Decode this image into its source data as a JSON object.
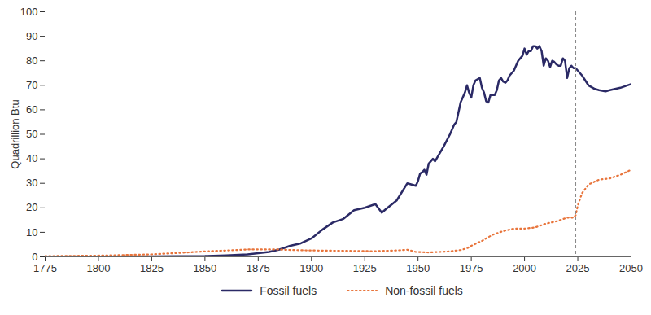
{
  "chart_data": {
    "type": "line",
    "y_label": "Quadrillion Btu",
    "xlim": [
      1775,
      2050
    ],
    "xticks": [
      1775,
      1800,
      1825,
      1850,
      1875,
      1900,
      1925,
      1950,
      1975,
      2000,
      2025,
      2050
    ],
    "ylim": [
      0,
      100
    ],
    "yticks": [
      0,
      10,
      20,
      30,
      40,
      50,
      60,
      70,
      80,
      90,
      100
    ],
    "grid": false,
    "legend": "bottom",
    "projection_start": 2024,
    "series": [
      {
        "name": "Fossil fuels",
        "color": "#2b2a66",
        "line_style": "solid",
        "x": [
          1775,
          1800,
          1825,
          1850,
          1860,
          1870,
          1880,
          1885,
          1890,
          1895,
          1900,
          1905,
          1910,
          1915,
          1920,
          1925,
          1930,
          1933,
          1935,
          1940,
          1945,
          1949,
          1950,
          1951,
          1952,
          1953,
          1954,
          1955,
          1957,
          1958,
          1960,
          1962,
          1965,
          1967,
          1968,
          1970,
          1972,
          1973,
          1974,
          1975,
          1976,
          1977,
          1978,
          1979,
          1980,
          1981,
          1982,
          1983,
          1984,
          1985,
          1986,
          1987,
          1988,
          1989,
          1990,
          1991,
          1992,
          1993,
          1994,
          1995,
          1996,
          1997,
          1998,
          1999,
          2000,
          2001,
          2002,
          2003,
          2004,
          2005,
          2006,
          2007,
          2008,
          2009,
          2010,
          2011,
          2012,
          2013,
          2014,
          2015,
          2016,
          2017,
          2018,
          2019,
          2020,
          2021,
          2022,
          2023,
          2024,
          2025,
          2027,
          2030,
          2033,
          2035,
          2038,
          2040,
          2045,
          2050
        ],
        "values": [
          0,
          0.1,
          0.2,
          0.3,
          0.6,
          1,
          2,
          3,
          4.5,
          5.5,
          7.5,
          11,
          14,
          15.5,
          19,
          20,
          21.5,
          18,
          19.5,
          23,
          30,
          29,
          31,
          34,
          34.5,
          35.5,
          33.5,
          38,
          40,
          39,
          42,
          45,
          50,
          54,
          55,
          63,
          67,
          70,
          67,
          65,
          70,
          72,
          72.5,
          73,
          69,
          67,
          63.5,
          63,
          66,
          66,
          66,
          68,
          72,
          73,
          71.5,
          71,
          72,
          74,
          75,
          76,
          78,
          80,
          81,
          82,
          85,
          82.5,
          84,
          84,
          86,
          86,
          85,
          86,
          84,
          78,
          81,
          80,
          77.5,
          80,
          79.5,
          78.5,
          78,
          78,
          81,
          80,
          73,
          77,
          78,
          77,
          77,
          76,
          74,
          70,
          68.5,
          68,
          67.5,
          68,
          69,
          70.5
        ]
      },
      {
        "name": "Non-fossil fuels",
        "color": "#e8743b",
        "line_style": "dotted",
        "x": [
          1775,
          1800,
          1825,
          1850,
          1860,
          1870,
          1880,
          1885,
          1890,
          1900,
          1910,
          1920,
          1930,
          1940,
          1945,
          1949,
          1950,
          1955,
          1960,
          1965,
          1970,
          1973,
          1975,
          1980,
          1985,
          1990,
          1995,
          2000,
          2005,
          2010,
          2015,
          2020,
          2023,
          2024,
          2025,
          2027,
          2030,
          2035,
          2040,
          2045,
          2050
        ],
        "values": [
          0.3,
          0.5,
          1,
          2.2,
          2.6,
          3,
          3,
          3,
          2.8,
          2.6,
          2.5,
          2.4,
          2.3,
          2.6,
          2.9,
          2,
          2,
          1.8,
          2,
          2.2,
          2.8,
          3.5,
          4.5,
          6.5,
          9,
          10.5,
          11.5,
          11.5,
          12,
          13.5,
          14.5,
          16,
          16,
          17,
          21,
          26,
          29.5,
          31.5,
          32,
          33.5,
          35.5
        ]
      }
    ]
  }
}
